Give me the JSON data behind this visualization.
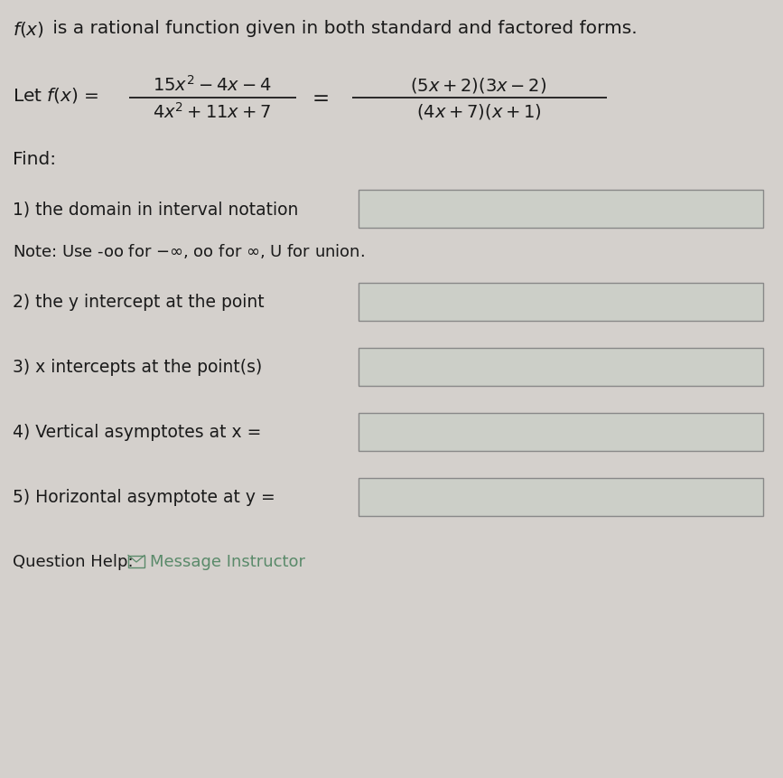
{
  "title_line": " is a rational function given in both standard and factored forms.",
  "let_prefix": "Let ",
  "find_label": "Find:",
  "items": [
    "1) the domain in interval notation",
    "Note: Use -oo for −∞, oo for ∞, U for union.",
    "2) the y intercept at the point",
    "3) x intercepts at the point(s)",
    "4) Vertical asymptotes at x =",
    "5) Horizontal asymptote at y ="
  ],
  "question_help": "Question Help:",
  "message_instructor": "Message Instructor",
  "bg_color": "#d4d0cc",
  "box_facecolor": "#cccfc8",
  "box_edgecolor": "#888888",
  "text_color": "#1a1a1a",
  "link_color": "#5a8a6a",
  "title_fontsize": 14.5,
  "body_fontsize": 13.5,
  "note_fontsize": 13,
  "help_fontsize": 13,
  "math_fontsize": 14
}
